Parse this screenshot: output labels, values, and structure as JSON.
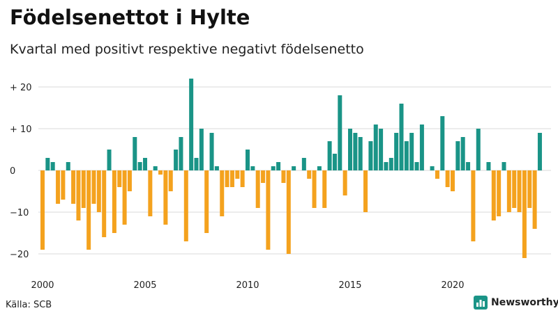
{
  "title": "Födelsenettot i Hylte",
  "subtitle": "Kvartal med positivt respektive negativt födelsenetto",
  "source": "Källa: SCB",
  "brand": "Newsworthy",
  "colors": {
    "positive": "#1a9487",
    "negative": "#f4a21e",
    "grid": "#d9d9d9",
    "brand_icon": "#1a9487"
  },
  "chart_data": {
    "type": "bar",
    "title": "Födelsenettot i Hylte",
    "subtitle": "Kvartal med positivt respektive negativt födelsenetto",
    "xlabel": "",
    "ylabel": "",
    "ylim": [
      -24,
      24
    ],
    "y_ticks": [
      {
        "value": 20,
        "label": "+ 20"
      },
      {
        "value": 10,
        "label": "+ 10"
      },
      {
        "value": 0,
        "label": "0"
      },
      {
        "value": -10,
        "label": "−10"
      },
      {
        "value": -20,
        "label": "−20"
      }
    ],
    "x_ticks": [
      {
        "year": 2000,
        "label": "2000"
      },
      {
        "year": 2005,
        "label": "2005"
      },
      {
        "year": 2010,
        "label": "2010"
      },
      {
        "year": 2015,
        "label": "2015"
      },
      {
        "year": 2020,
        "label": "2020"
      }
    ],
    "start_year": 2000,
    "period": "quarter",
    "series": [
      {
        "name": "Födelsenetto",
        "values": [
          -19,
          3,
          2,
          -8,
          -7,
          2,
          -8,
          -12,
          -9,
          -19,
          -8,
          -10,
          -16,
          5,
          -15,
          -4,
          -13,
          -5,
          8,
          2,
          3,
          -11,
          1,
          -1,
          -13,
          -5,
          5,
          8,
          -17,
          22,
          3,
          10,
          -15,
          9,
          1,
          -11,
          -4,
          -4,
          -2,
          -4,
          5,
          1,
          -9,
          -3,
          -19,
          1,
          2,
          -3,
          -20,
          1,
          0,
          3,
          -2,
          -9,
          1,
          -9,
          7,
          4,
          18,
          -6,
          10,
          9,
          8,
          -10,
          7,
          11,
          10,
          2,
          3,
          9,
          16,
          7,
          9,
          2,
          11,
          0,
          1,
          -2,
          13,
          -4,
          -5,
          7,
          8,
          2,
          -17,
          10,
          0,
          2,
          -12,
          -11,
          2,
          -10,
          -9,
          -10,
          -21,
          -9,
          -14,
          9
        ]
      }
    ]
  }
}
